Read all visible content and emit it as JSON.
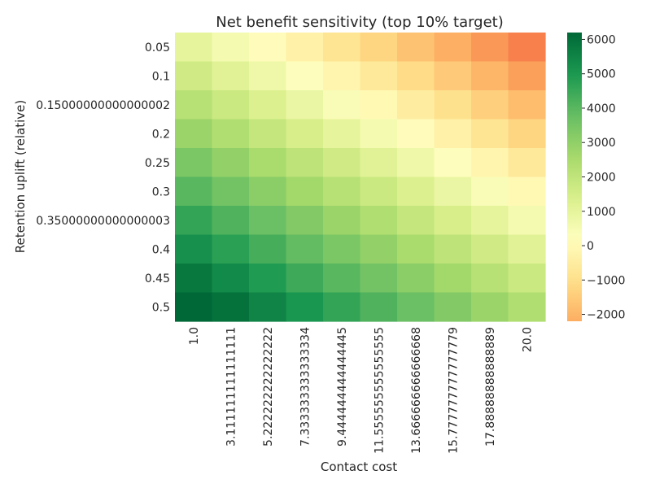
{
  "chart_data": {
    "type": "heatmap",
    "title": "Net benefit sensitivity (top 10% target)",
    "xlabel": "Contact cost",
    "ylabel": "Retention uplift (relative)",
    "x_categories": [
      "1.0",
      "3.111111111111111",
      "5.222222222222222",
      "7.333333333333334",
      "9.444444444444445",
      "11.555555555555555",
      "13.666666666666668",
      "15.777777777777779",
      "17.88888888888889",
      "20.0"
    ],
    "y_categories": [
      "0.05",
      "0.1",
      "0.15000000000000002",
      "0.2",
      "0.25",
      "0.3",
      "0.35000000000000003",
      "0.4",
      "0.45",
      "0.5"
    ],
    "values": [
      [
        1000,
        550,
        100,
        -350,
        -800,
        -1250,
        -1700,
        -2150,
        -2600,
        -3050
      ],
      [
        1600,
        1150,
        700,
        250,
        -200,
        -650,
        -1100,
        -1550,
        -2000,
        -2450
      ],
      [
        2200,
        1750,
        1300,
        850,
        400,
        -50,
        -500,
        -950,
        -1400,
        -1850
      ],
      [
        2800,
        2350,
        1900,
        1450,
        1000,
        550,
        100,
        -350,
        -800,
        -1250
      ],
      [
        3400,
        2950,
        2500,
        2050,
        1600,
        1150,
        700,
        250,
        -200,
        -650
      ],
      [
        4000,
        3550,
        3100,
        2650,
        2200,
        1750,
        1300,
        850,
        400,
        -50
      ],
      [
        4600,
        4150,
        3700,
        3250,
        2800,
        2350,
        1900,
        1450,
        1000,
        550
      ],
      [
        5200,
        4750,
        4300,
        3850,
        3400,
        2950,
        2500,
        2050,
        1600,
        1150
      ],
      [
        5800,
        5350,
        4900,
        4450,
        4000,
        3550,
        3100,
        2650,
        2200,
        1750
      ],
      [
        6400,
        5950,
        5500,
        5050,
        4600,
        4150,
        3700,
        3250,
        2800,
        2350
      ]
    ],
    "colorbar": {
      "vmin": -2200,
      "vmax": 6200,
      "ticks": [
        -2000,
        -1000,
        0,
        1000,
        2000,
        3000,
        4000,
        5000,
        6000
      ],
      "tick_labels": [
        "−2000",
        "−1000",
        "0",
        "1000",
        "2000",
        "3000",
        "4000",
        "5000",
        "6000"
      ]
    },
    "colormap": "RdYlGn"
  }
}
